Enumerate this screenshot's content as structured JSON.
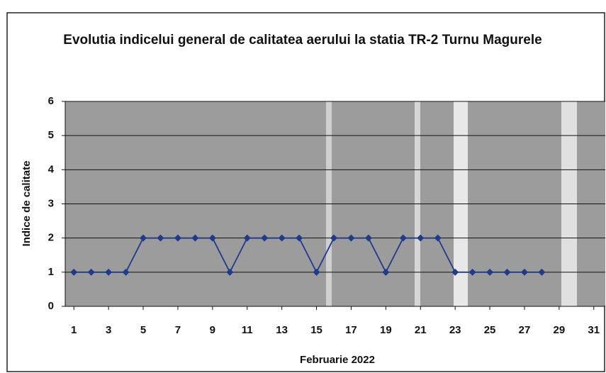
{
  "chart_data": {
    "type": "line",
    "title": "Evolutia indicelui general de calitatea aerului la statia TR-2 Turnu Magurele",
    "x_label": "Februarie 2022",
    "y_label": "Indice de calitate",
    "x": [
      1,
      2,
      3,
      4,
      5,
      6,
      7,
      8,
      9,
      10,
      11,
      12,
      13,
      14,
      15,
      16,
      17,
      18,
      19,
      20,
      21,
      22,
      23,
      24,
      25,
      26,
      27,
      28
    ],
    "values": [
      1,
      1,
      1,
      1,
      2,
      2,
      2,
      2,
      2,
      1,
      2,
      2,
      2,
      2,
      1,
      2,
      2,
      2,
      1,
      2,
      2,
      2,
      1,
      1,
      1,
      1,
      1,
      1
    ],
    "color": "#1f3c8c",
    "xlim": [
      0.5,
      31.5
    ],
    "xticks": [
      1,
      3,
      5,
      7,
      9,
      11,
      13,
      15,
      17,
      19,
      21,
      23,
      25,
      27,
      29,
      31
    ],
    "ylim": [
      0,
      6
    ],
    "yticks": [
      0,
      1,
      2,
      3,
      4,
      5,
      6
    ],
    "grid": true
  }
}
